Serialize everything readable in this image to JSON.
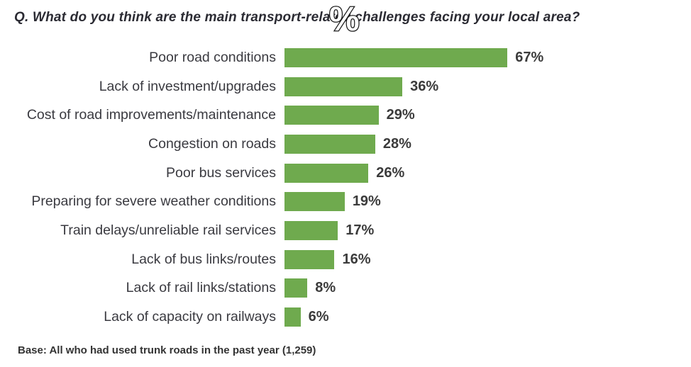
{
  "title": "Q. What do you think are the main transport-related challenges facing your local area?",
  "percent_overlay": "%",
  "base_note": "Base: All who had used trunk roads in the past year (1,259)",
  "colors": {
    "bar_green": "#6faa4e",
    "title_text": "#2b2b33",
    "category_text": "#3a3a40",
    "value_text": "#3b3b3b",
    "background": "#ffffff",
    "percent_overlay_fill": "#ffffff",
    "percent_overlay_outline": "#1a1a1a"
  },
  "chart_data": {
    "type": "bar",
    "orientation": "horizontal",
    "title": "Q. What do you think are the main transport-related challenges facing your local area?",
    "xlabel": "",
    "ylabel": "",
    "unit": "%",
    "xlim": [
      0,
      100
    ],
    "grid": false,
    "legend": false,
    "categories": [
      "Poor road conditions",
      "Lack of investment/upgrades",
      "Cost of road improvements/maintenance",
      "Congestion on roads",
      "Poor bus services",
      "Preparing for severe weather conditions",
      "Train delays/unreliable rail services",
      "Lack of bus links/routes",
      "Lack of rail links/stations",
      "Lack of capacity on railways"
    ],
    "values": [
      67,
      36,
      29,
      28,
      26,
      19,
      17,
      16,
      8,
      6
    ],
    "value_labels": [
      "67%",
      "36%",
      "29%",
      "28%",
      "26%",
      "19%",
      "17%",
      "16%",
      "8%",
      "6%"
    ]
  }
}
